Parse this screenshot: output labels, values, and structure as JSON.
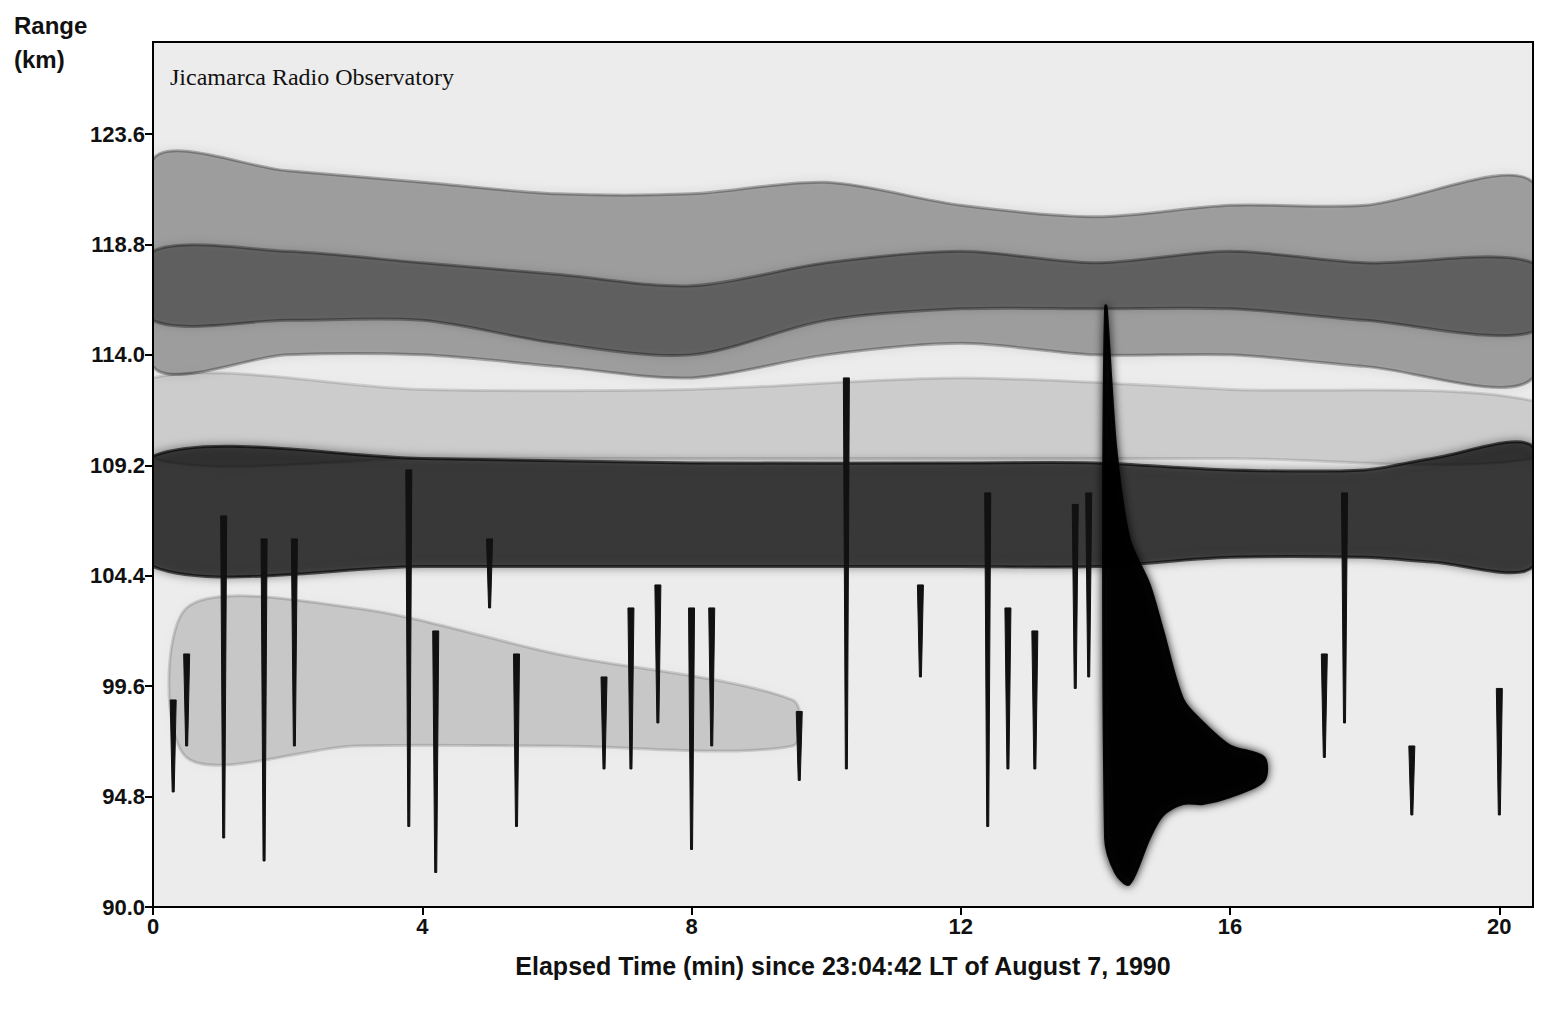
{
  "chart_data": {
    "type": "range-time-intensity",
    "title": "Jicamarca Radio Observatory",
    "x_label": "Elapsed Time (min) since 23:04:42 LT of August 7, 1990",
    "y_label": "Range (km)",
    "xlim": [
      0,
      20.5
    ],
    "xticks": [
      0,
      4,
      8,
      12,
      16,
      20
    ],
    "ylim": [
      90,
      127.6
    ],
    "yticks": [
      {
        "value": 90,
        "label": "90.0"
      },
      94.8,
      99.6,
      104.4,
      109.2,
      {
        "value": 114,
        "label": "114.0"
      },
      118.8,
      123.6
    ],
    "grid": false,
    "layers": [
      {
        "x": [
          0,
          2,
          4,
          6,
          8,
          10,
          12,
          14,
          16,
          18,
          20.5
        ],
        "low": [
          113.5,
          114,
          114,
          113.5,
          113,
          114,
          114.5,
          114,
          114,
          113.5,
          113
        ],
        "high": [
          122.5,
          122,
          121.5,
          121,
          121,
          121.5,
          120.5,
          120,
          120.5,
          120.5,
          121.5
        ],
        "intensity": 0.28
      },
      {
        "x": [
          0,
          2,
          4,
          6,
          8,
          10,
          12,
          14,
          16,
          18,
          20.5
        ],
        "low": [
          115.5,
          115.5,
          115.5,
          114.5,
          114,
          115.5,
          116,
          116,
          116,
          115.5,
          115
        ],
        "high": [
          118.5,
          118.5,
          118,
          117.5,
          117,
          118,
          118.5,
          118,
          118.5,
          118,
          118
        ],
        "intensity": 0.32
      },
      {
        "x": [
          0,
          4,
          8,
          12,
          16,
          20.5
        ],
        "low": [
          109.5,
          109.5,
          109.5,
          109.5,
          109.5,
          109.5
        ],
        "high": [
          113,
          112.5,
          112.5,
          113,
          112.5,
          112
        ],
        "intensity": 0.12
      },
      {
        "x": [
          0.5,
          3,
          6,
          9.5
        ],
        "low": [
          96.5,
          97,
          97,
          97
        ],
        "high": [
          103,
          103,
          101,
          99
        ],
        "intensity": 0.14
      },
      {
        "x": [
          0,
          4,
          8,
          12,
          14,
          16,
          18,
          19,
          20.5
        ],
        "low": [
          104.8,
          104.8,
          104.8,
          104.8,
          104.8,
          105.2,
          105.2,
          105,
          104.8
        ],
        "high": [
          109.6,
          109.5,
          109.3,
          109.3,
          109.3,
          109,
          109,
          109.5,
          110
        ],
        "intensity": 0.62
      },
      {
        "x": [
          14.15,
          14.3,
          14.5,
          14.8,
          15,
          15.3,
          15.6,
          16,
          16.5
        ],
        "low": [
          93,
          91.5,
          91,
          93,
          94,
          94.5,
          94.5,
          94.8,
          95.5
        ],
        "high": [
          116,
          110,
          106,
          104,
          102,
          99,
          98,
          97,
          96.5
        ],
        "intensity": 0.95
      }
    ],
    "echoes": {
      "time": [
        0.3,
        0.5,
        1.05,
        1.65,
        2.1,
        3.8,
        4.2,
        5.0,
        5.4,
        6.7,
        7.1,
        7.5,
        8.0,
        8.3,
        9.6,
        10.3,
        11.4,
        12.4,
        12.7,
        13.1,
        13.7,
        13.9,
        17.4,
        17.7,
        18.7,
        20.0
      ],
      "top": [
        99,
        101,
        107,
        106,
        106,
        109,
        102,
        106,
        101,
        100,
        103,
        104,
        103,
        103,
        98.5,
        113,
        104,
        108,
        103,
        102,
        107.5,
        108,
        101,
        108,
        97,
        99.5
      ],
      "bottom": [
        95,
        97,
        93,
        92,
        97,
        93.5,
        91.5,
        103,
        93.5,
        96,
        96,
        98,
        92.5,
        97,
        95.5,
        96,
        100,
        93.5,
        96,
        96,
        99.5,
        100,
        96.5,
        98,
        94,
        94
      ]
    }
  }
}
